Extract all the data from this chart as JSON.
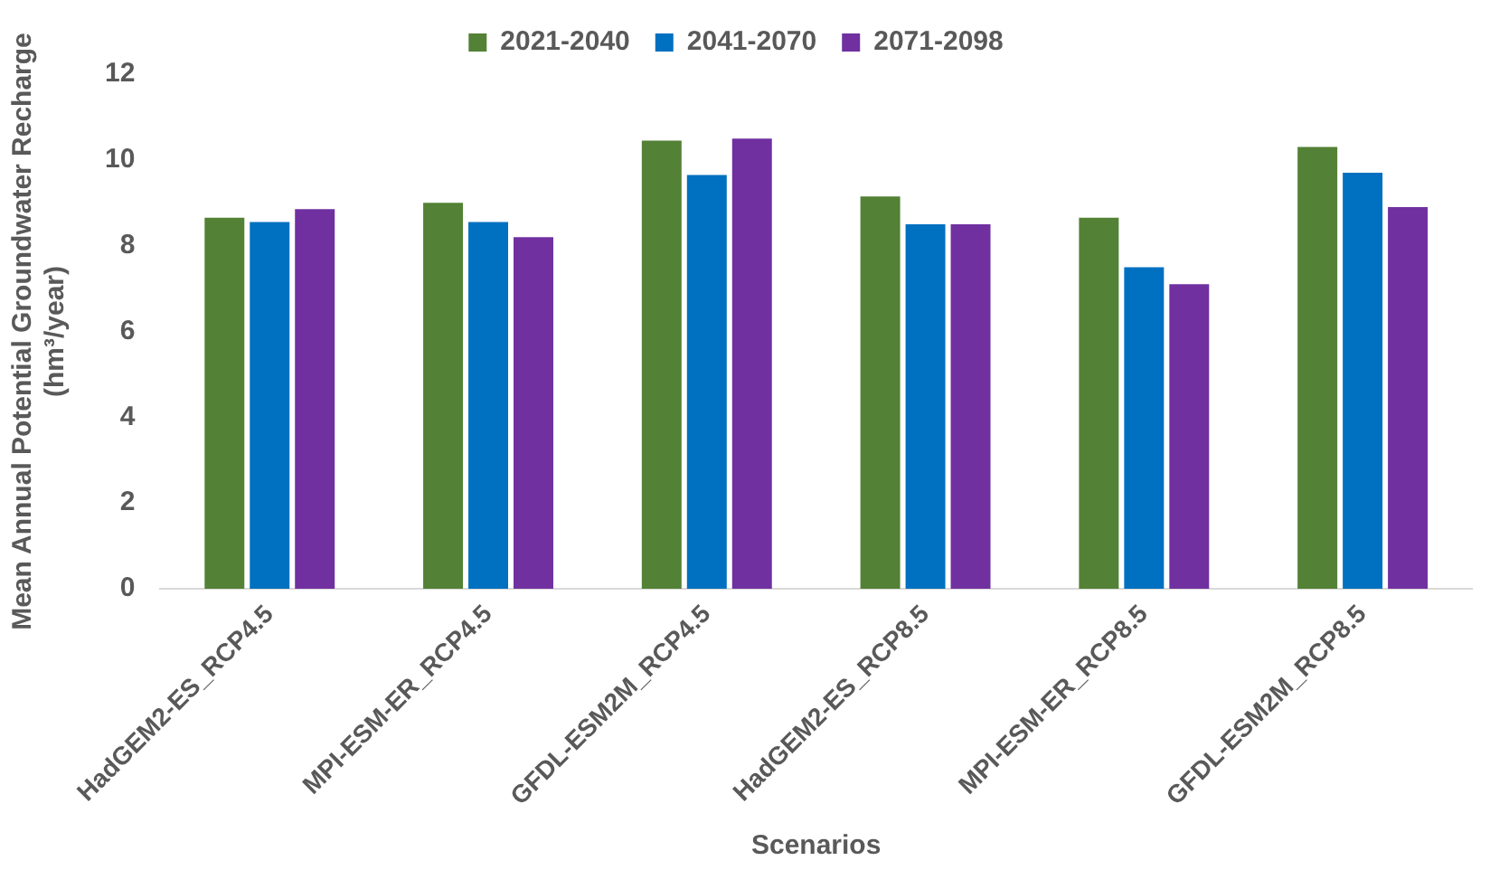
{
  "chart_data": {
    "type": "bar",
    "xlabel": "Scenarios",
    "ylabel": "Mean Annual Potential Groundwater Recharge (hm³/year)",
    "categories": [
      "HadGEM2-ES_RCP4.5",
      "MPI-ESM-ER_RCP4.5",
      "GFDL-ESM2M_RCP4.5",
      "HadGEM2-ES_RCP8.5",
      "MPI-ESM-ER_RCP8.5",
      "GFDL-ESM2M_RCP8.5"
    ],
    "series": [
      {
        "name": "2021-2040",
        "color": "#538135",
        "values": [
          8.65,
          9.0,
          10.45,
          9.15,
          8.65,
          10.3
        ]
      },
      {
        "name": "2041-2070",
        "color": "#0070c0",
        "values": [
          8.55,
          8.55,
          9.65,
          8.5,
          7.5,
          9.7
        ]
      },
      {
        "name": "2071-2098",
        "color": "#7030a0",
        "values": [
          8.85,
          8.2,
          10.5,
          8.5,
          7.1,
          8.9
        ]
      }
    ],
    "ylim": [
      0,
      12
    ],
    "yticks": [
      0,
      2,
      4,
      6,
      8,
      10,
      12
    ],
    "grid": false,
    "legend": "top"
  }
}
